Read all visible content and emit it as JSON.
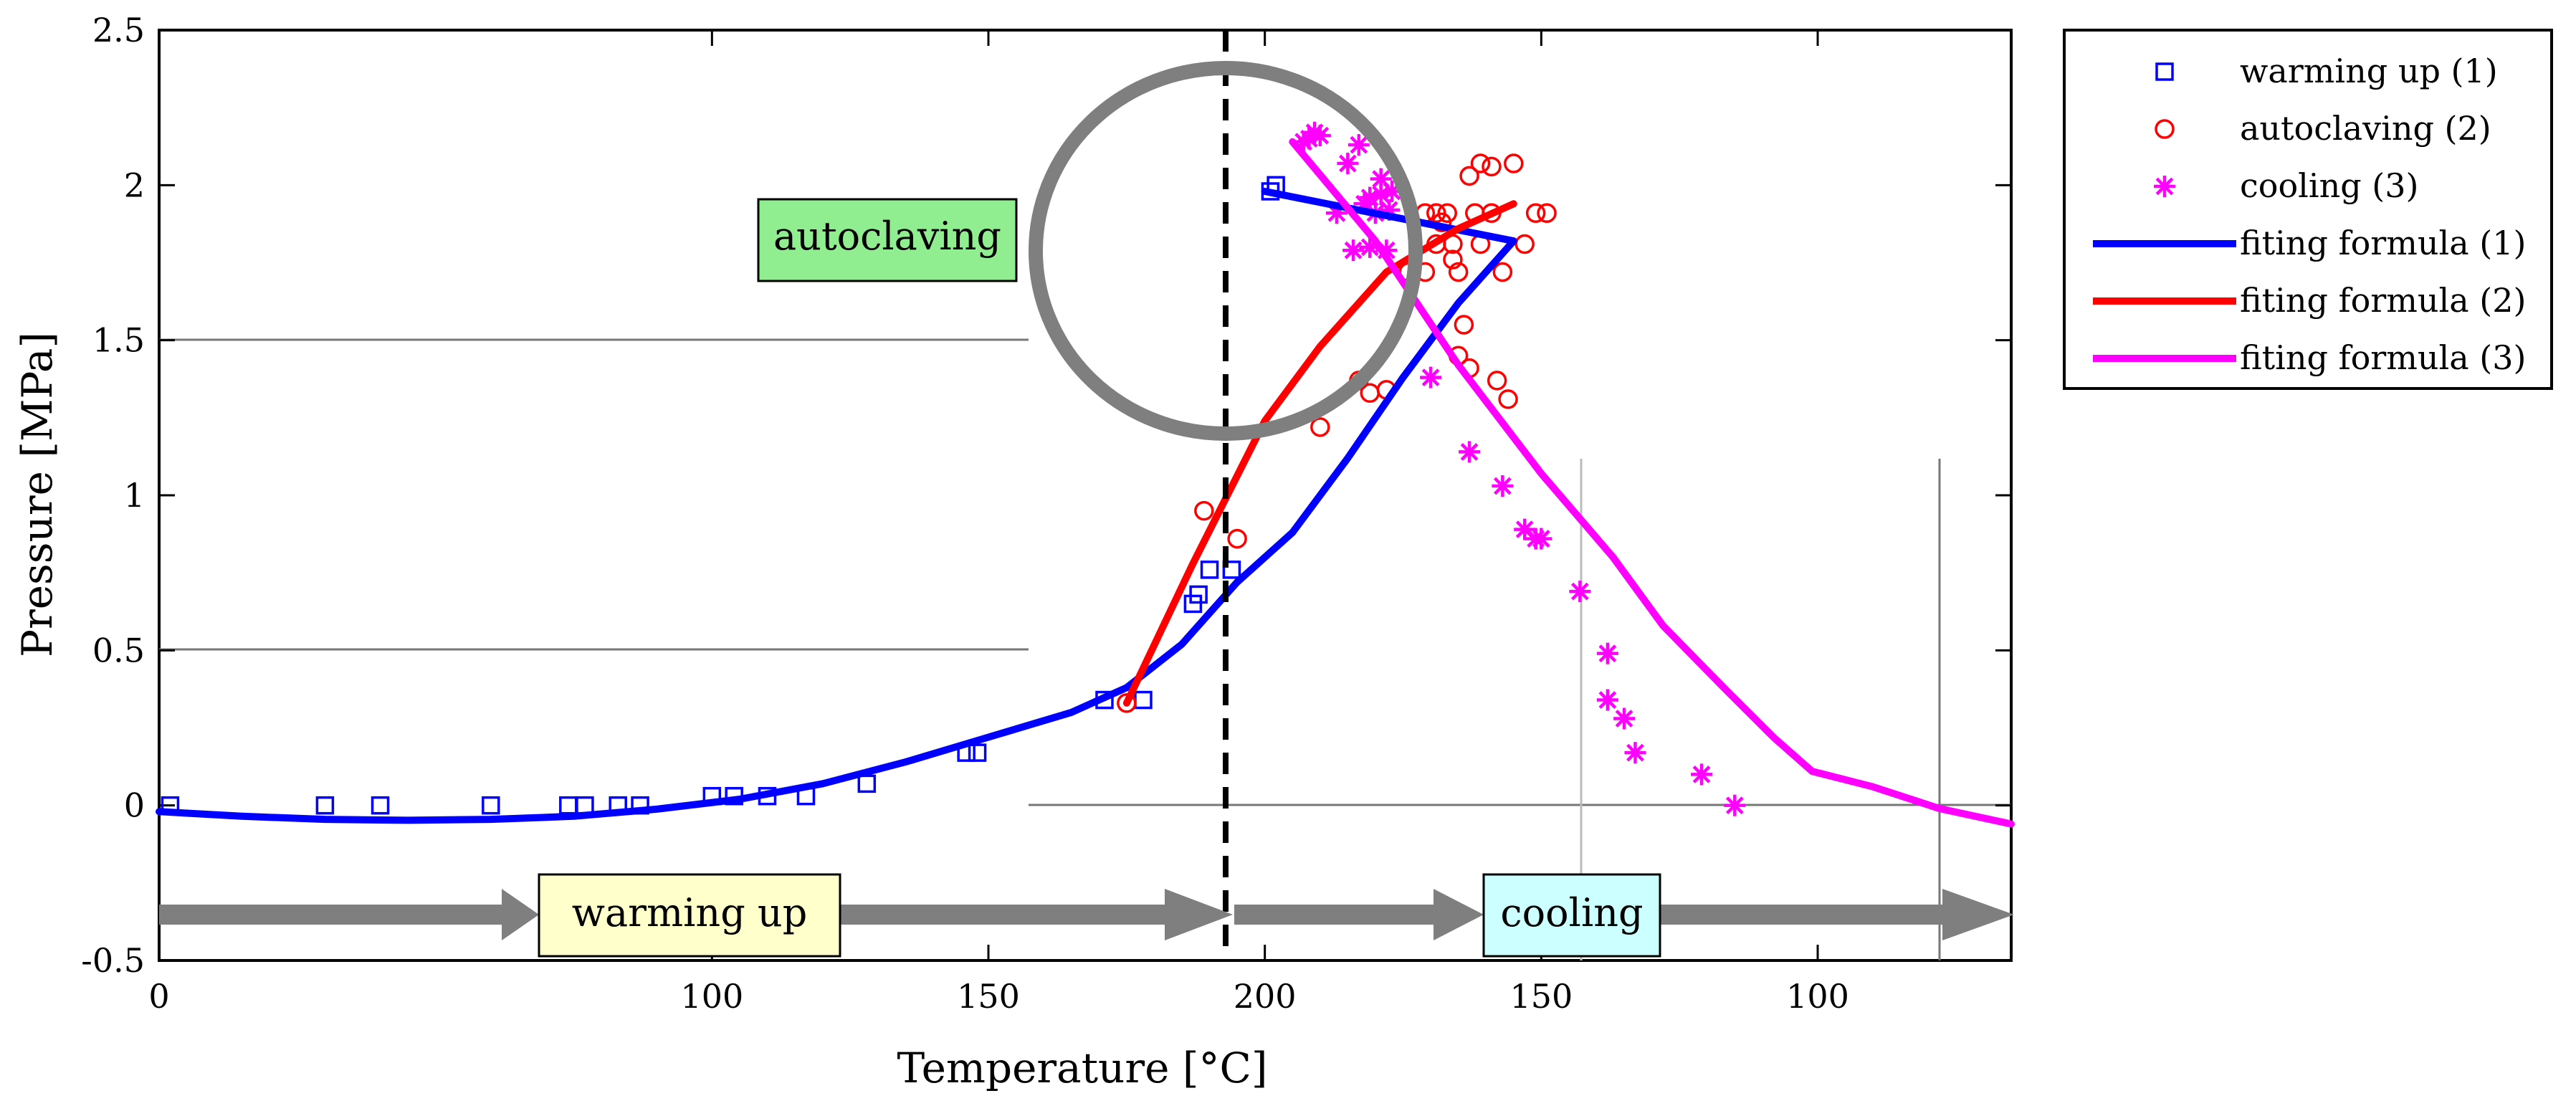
{
  "chart_data": {
    "type": "scatter",
    "xlabel": "Temperature [°C]",
    "ylabel": "Pressure [MPa]",
    "ylim": [
      -0.5,
      2.5
    ],
    "y_ticks": [
      "-0.5",
      "0",
      "0.5",
      "1",
      "1.5",
      "2",
      "2.5"
    ],
    "x_ticks": [
      "0",
      "100",
      "150",
      "200",
      "150",
      "100"
    ],
    "x_axis_note": "Process axis: temperature rises 0→200 °C during warming up/autoclaving, then falls 200→about 90 °C during cooling",
    "legend_position": "outside-right",
    "grid": false,
    "series": [
      {
        "name": "warming up (1)",
        "kind": "markers",
        "marker": "square",
        "color": "#0000ff",
        "points": [
          [
            2,
            0
          ],
          [
            30,
            0
          ],
          [
            40,
            0
          ],
          [
            60,
            0
          ],
          [
            74,
            0
          ],
          [
            77,
            0
          ],
          [
            83,
            0
          ],
          [
            87,
            0
          ],
          [
            100,
            0.03
          ],
          [
            104,
            0.03
          ],
          [
            110,
            0.03
          ],
          [
            117,
            0.03
          ],
          [
            128,
            0.07
          ],
          [
            146,
            0.17
          ],
          [
            148,
            0.17
          ],
          [
            171,
            0.34
          ],
          [
            178,
            0.34
          ],
          [
            187,
            0.65
          ],
          [
            188,
            0.68
          ],
          [
            190,
            0.76
          ],
          [
            194,
            0.76
          ],
          [
            201,
            1.98
          ],
          [
            202,
            2.0
          ]
        ]
      },
      {
        "name": "autoclaving (2)",
        "kind": "markers",
        "marker": "circle",
        "color": "#ff0000",
        "points": [
          [
            175,
            0.33
          ],
          [
            189,
            0.95
          ],
          [
            195,
            0.86
          ],
          [
            210,
            1.22
          ],
          [
            217,
            1.37
          ],
          [
            219,
            1.33
          ],
          [
            222,
            1.34
          ],
          [
            226,
            1.72
          ],
          [
            229,
            1.72
          ],
          [
            229,
            1.91
          ],
          [
            231,
            1.81
          ],
          [
            231,
            1.91
          ],
          [
            232,
            1.88
          ],
          [
            233,
            1.91
          ],
          [
            234,
            1.76
          ],
          [
            234,
            1.81
          ],
          [
            235,
            1.72
          ],
          [
            235,
            1.45
          ],
          [
            236,
            1.55
          ],
          [
            237,
            1.41
          ],
          [
            237,
            2.03
          ],
          [
            238,
            1.91
          ],
          [
            239,
            2.07
          ],
          [
            239,
            1.81
          ],
          [
            241,
            1.91
          ],
          [
            241,
            2.06
          ],
          [
            242,
            1.37
          ],
          [
            243,
            1.72
          ],
          [
            244,
            1.31
          ],
          [
            245,
            2.07
          ],
          [
            247,
            1.81
          ],
          [
            249,
            1.91
          ],
          [
            251,
            1.91
          ]
        ]
      },
      {
        "name": "cooling (3)",
        "kind": "markers",
        "marker": "asterisk",
        "color": "#ff00ff",
        "points": [
          [
            207,
            2.14
          ],
          [
            208,
            2.15
          ],
          [
            209,
            2.17
          ],
          [
            210,
            2.16
          ],
          [
            213,
            1.91
          ],
          [
            215,
            2.07
          ],
          [
            216,
            1.79
          ],
          [
            217,
            2.13
          ],
          [
            218,
            1.94
          ],
          [
            219,
            1.96
          ],
          [
            219,
            1.8
          ],
          [
            220,
            1.91
          ],
          [
            221,
            2.02
          ],
          [
            221,
            1.97
          ],
          [
            222,
            1.79
          ],
          [
            223,
            1.98
          ],
          [
            222.5,
            1.92
          ],
          [
            230,
            1.38
          ],
          [
            237,
            1.14
          ],
          [
            243,
            1.03
          ],
          [
            247,
            0.89
          ],
          [
            249,
            0.86
          ],
          [
            250,
            0.86
          ],
          [
            257,
            0.69
          ],
          [
            262,
            0.49
          ],
          [
            262,
            0.34
          ],
          [
            265,
            0.28
          ],
          [
            267,
            0.17
          ],
          [
            279,
            0.1
          ],
          [
            285,
            0.0
          ]
        ]
      },
      {
        "name": "fiting formula (1)",
        "kind": "line",
        "color": "#0000ff",
        "points": [
          [
            0,
            -0.02
          ],
          [
            15,
            -0.035
          ],
          [
            30,
            -0.045
          ],
          [
            45,
            -0.048
          ],
          [
            60,
            -0.045
          ],
          [
            75,
            -0.035
          ],
          [
            90,
            -0.012
          ],
          [
            105,
            0.02
          ],
          [
            120,
            0.07
          ],
          [
            135,
            0.14
          ],
          [
            150,
            0.22
          ],
          [
            165,
            0.3
          ],
          [
            175,
            0.38
          ],
          [
            185,
            0.52
          ],
          [
            195,
            0.72
          ],
          [
            205,
            0.88
          ],
          [
            215,
            1.12
          ],
          [
            225,
            1.38
          ],
          [
            235,
            1.62
          ],
          [
            245,
            1.82
          ],
          [
            200,
            1.98
          ]
        ]
      },
      {
        "name": "fiting formula (2)",
        "kind": "line",
        "color": "#ff0000",
        "points": [
          [
            175,
            0.33
          ],
          [
            187,
            0.78
          ],
          [
            200,
            1.24
          ],
          [
            210,
            1.48
          ],
          [
            222,
            1.72
          ],
          [
            235,
            1.86
          ],
          [
            245,
            1.94
          ]
        ]
      },
      {
        "name": "fiting formula (3)",
        "kind": "line",
        "color": "#ff00ff",
        "points": [
          [
            205,
            2.14
          ],
          [
            220,
            1.82
          ],
          [
            235,
            1.42
          ],
          [
            250,
            1.07
          ],
          [
            263,
            0.8
          ],
          [
            272,
            0.58
          ],
          [
            283,
            0.38
          ],
          [
            292,
            0.22
          ],
          [
            299,
            0.11
          ],
          [
            310,
            0.06
          ],
          [
            322,
            -0.01
          ],
          [
            335,
            -0.06
          ]
        ]
      }
    ],
    "annotations": [
      {
        "label": "autoclaving",
        "fill": "#90ee90"
      },
      {
        "label": "warming up",
        "fill": "#ffffcc"
      },
      {
        "label": "cooling",
        "fill": "#ccffff"
      }
    ]
  }
}
